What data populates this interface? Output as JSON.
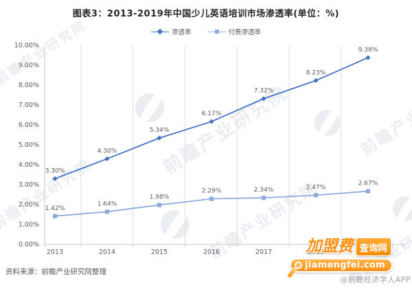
{
  "title": "图表3：2013-2019年中国少儿英语培训市场渗透率(单位：%)",
  "legend": {
    "items": [
      {
        "label": "渗透率"
      },
      {
        "label": "付费渗透率"
      }
    ]
  },
  "chart_data": {
    "type": "line",
    "title": "图表3：2013-2019年中国少儿英语培训市场渗透率(单位：%)",
    "categories": [
      "2013",
      "2014",
      "2015",
      "2016",
      "2017",
      "2018",
      "2019"
    ],
    "series": [
      {
        "name": "渗透率",
        "marker": "diamond",
        "color": "#4472C4",
        "values": [
          3.3,
          4.3,
          5.34,
          6.17,
          7.32,
          8.23,
          9.38
        ],
        "labels": [
          "3.30%",
          "4.30%",
          "5.34%",
          "6.17%",
          "7.32%",
          "8.23%",
          "9.38%"
        ]
      },
      {
        "name": "付费渗透率",
        "marker": "square",
        "color": "#8FAADC",
        "values": [
          1.42,
          1.64,
          1.98,
          2.29,
          2.34,
          2.47,
          2.67
        ],
        "labels": [
          "1.42%",
          "1.64%",
          "1.98%",
          "2.29%",
          "2.34%",
          "2.47%",
          "2.67%"
        ]
      }
    ],
    "ylim": [
      0,
      10
    ],
    "yticks": [
      "0.00%",
      "1.00%",
      "2.00%",
      "3.00%",
      "4.00%",
      "5.00%",
      "6.00%",
      "7.00%",
      "8.00%",
      "9.00%",
      "10.00%"
    ],
    "grid": "vertical",
    "legend_position": "top-center",
    "axis_color": "#C6C6C6",
    "grid_color": "#DCDCDC",
    "label_color": "#595959"
  },
  "source": "资料来源：前瞻产业研究院整理",
  "watermark": {
    "brand": "前瞻产业研究院",
    "badge_line1_left": "加盟费",
    "badge_line1_right": "查询网",
    "badge_line2": "jiamengfei.com",
    "badge_line3": "@前瞻经济学人APP"
  }
}
